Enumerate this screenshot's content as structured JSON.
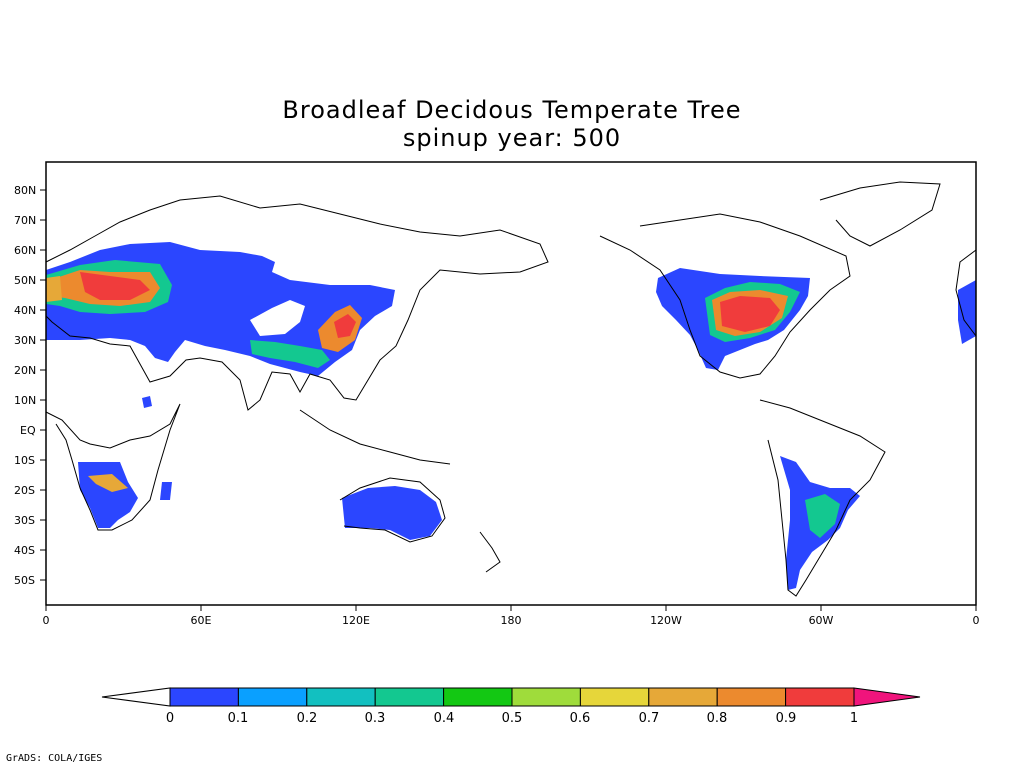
{
  "title_line1": "Broadleaf Decidous Temperate Tree",
  "title_line2": "spinup year: 500",
  "credit": "GrADS: COLA/IGES",
  "lat_labels": [
    "80N",
    "70N",
    "60N",
    "50N",
    "40N",
    "30N",
    "20N",
    "10N",
    "EQ",
    "10S",
    "20S",
    "30S",
    "40S",
    "50S"
  ],
  "lon_labels": [
    "0",
    "60E",
    "120E",
    "180",
    "120W",
    "60W",
    "0"
  ],
  "colorbar": {
    "labels": [
      "0",
      "0.1",
      "0.2",
      "0.3",
      "0.4",
      "0.5",
      "0.6",
      "0.7",
      "0.8",
      "0.9",
      "1"
    ],
    "colors": [
      "#2b46ff",
      "#0aa0ff",
      "#12c0c0",
      "#13c890",
      "#13c813",
      "#9fdc3b",
      "#e6d63a",
      "#e6a838",
      "#ec8a2e",
      "#f03c3c"
    ],
    "under_color": "#ffffff",
    "over_color": "#f0147c"
  },
  "colors": {
    "frame": "#000000",
    "coast": "#000000"
  }
}
